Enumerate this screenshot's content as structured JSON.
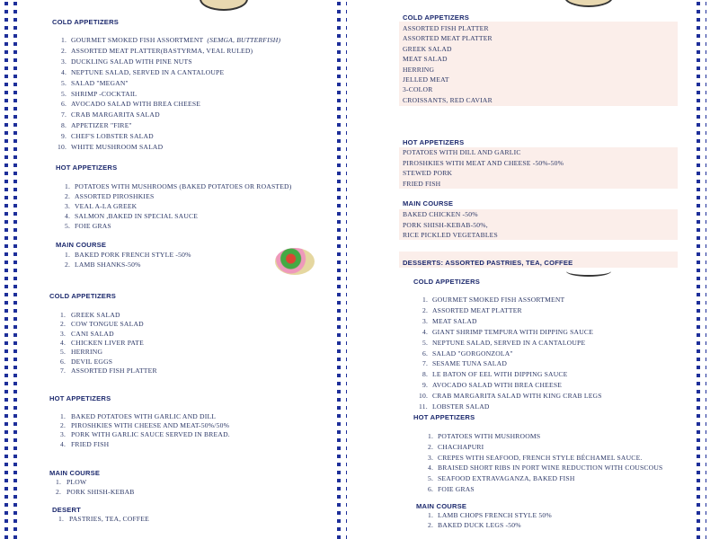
{
  "panels": [
    {
      "sections": [
        {
          "title": "COLD APPETIZERS",
          "items": [
            {
              "num": "1.",
              "text": "GOURMET SMOKED FISH ASSORTMENT",
              "note": "(SEMGA,  BUTTERFISH)"
            },
            {
              "num": "2.",
              "text": "ASSORTED MEAT PLATTER(BASTYRMA, VEAL  RULED)"
            },
            {
              "num": "3.",
              "text": "DUCKLING SALAD WITH PINE NUTS"
            },
            {
              "num": "4.",
              "text": "NEPTUNE SALAD, SERVED IN A CANTALOUPE"
            },
            {
              "num": "5.",
              "text": "SALAD \"MEGAN\""
            },
            {
              "num": "5.",
              "text": "SHRIMP -COCKTAIL"
            },
            {
              "num": "6.",
              "text": "AVOCADO SALAD WITH BREA CHEESE"
            },
            {
              "num": "7.",
              "text": "CRAB MARGARITA SALAD"
            },
            {
              "num": "8.",
              "text": "APPETIZER \"FIRE\""
            },
            {
              "num": "9.",
              "text": "CHEF'S LOBSTER SALAD"
            },
            {
              "num": "10.",
              "text": "WHITE MUSHROOM SALAD"
            }
          ]
        },
        {
          "title": "HOT APPETIZERS",
          "items": [
            {
              "num": "1.",
              "text": "POTATOES WITH MUSHROOMS (BAKED POTATOES OR ROASTED)"
            },
            {
              "num": "2.",
              "text": "ASSORTED PIROSHKIES"
            },
            {
              "num": "3.",
              "text": "VEAL A-LA GREEK"
            },
            {
              "num": "4.",
              "text": "SALMON ,BAKED IN SPECIAL SAUCE"
            },
            {
              "num": "5.",
              "text": "FOIE GRAS"
            }
          ]
        },
        {
          "title": "MAIN COURSE",
          "items": [
            {
              "num": "1.",
              "text": "BAKED PORK  FRENCH STYLE  -50%"
            },
            {
              "num": "2.",
              "text": "LAMB SHANKS-50%"
            }
          ]
        }
      ]
    },
    {
      "sections": [
        {
          "title": "COLD APPETIZERS",
          "items": [
            {
              "text": "ASSORTED FISH PLATTER"
            },
            {
              "text": "ASSORTED MEAT PLATTER"
            },
            {
              "text": "GREEK SALAD"
            },
            {
              "text": "MEAT SALAD"
            },
            {
              "text": "HERRING"
            },
            {
              "text": "JELLED MEAT"
            },
            {
              "text": "3-COLOR"
            },
            {
              "text": "CROISSANTS, RED CAVIAR"
            }
          ]
        },
        {
          "title": "HOT APPETIZERS",
          "items": [
            {
              "text": "POTATOES WITH DILL AND GARLIC"
            },
            {
              "text": "PIROSHKIES WITH MEAT AND CHEESE -50%-50%"
            },
            {
              "text": "STEWED PORK"
            },
            {
              "text": "FRIED FISH"
            }
          ]
        },
        {
          "title": "MAIN COURSE",
          "items": [
            {
              "text": "BAKED CHICKEN -50%"
            },
            {
              "text": "PORK SHISH-KEBAB-50%,"
            },
            {
              "text": "RICE PICKLED VEGETABLES"
            }
          ]
        },
        {
          "title": "DESSERTS: ASSORTED PASTRIES, TEA, COFFEE",
          "items": []
        }
      ]
    },
    {
      "sections": [
        {
          "title": "COLD APPETIZERS",
          "items": [
            {
              "num": "1.",
              "text": "GREEK SALAD"
            },
            {
              "num": "2.",
              "text": "COW TONGUE SALAD"
            },
            {
              "num": "3.",
              "text": "CANI SALAD"
            },
            {
              "num": "4.",
              "text": "CHICKEN LIVER PATE"
            },
            {
              "num": "5.",
              "text": "HERRING"
            },
            {
              "num": "6.",
              "text": "DEVIL EGGS"
            },
            {
              "num": "7.",
              "text": "ASSORTED  FISH PLATTER"
            }
          ]
        },
        {
          "title": "HOT APPETIZERS",
          "items": [
            {
              "num": "1.",
              "text": "BAKED POTATOES WITH GARLIC AND  DILL"
            },
            {
              "num": "2.",
              "text": "PIROSHKIES WITH CHEESE  AND MEAT-50%/50%"
            },
            {
              "num": "3.",
              "text": "PORK WITH GARLIC SAUCE SERVED IN BREAD."
            },
            {
              "num": "4.",
              "text": "FRIED FISH"
            }
          ]
        },
        {
          "title": "MAIN COURSE",
          "items": [
            {
              "num": "1.",
              "text": "PLOW"
            },
            {
              "num": "2.",
              "text": "PORK SHISH-KEBAB"
            }
          ]
        },
        {
          "title": "DESERT",
          "items": [
            {
              "num": "1.",
              "text": "PASTRIES, TEA, COFFEE"
            }
          ]
        }
      ]
    },
    {
      "sections": [
        {
          "title": "COLD APPETIZERS",
          "items": [
            {
              "num": "1.",
              "text": "GOURMET SMOKED FISH ASSORTMENT"
            },
            {
              "num": "2.",
              "text": "ASSORTED MEAT PLATTER"
            },
            {
              "num": "3.",
              "text": "MEAT SALAD"
            },
            {
              "num": "4.",
              "text": "GIANT SHRIMP TEMPURA WITH DIPPING SAUCE"
            },
            {
              "num": "5.",
              "text": "NEPTUNE SALAD, SERVED IN A CANTALOUPE"
            },
            {
              "num": "6.",
              "text": "SALAD \"GORGONZOLA\""
            },
            {
              "num": "7.",
              "text": "SESAME TUNA SALAD"
            },
            {
              "num": "8.",
              "text": "LE BATON OF EEL WITH DIPPING SAUCE"
            },
            {
              "num": "9.",
              "text": "AVOCADO SALAD WITH BREA CHEESE"
            },
            {
              "num": "10.",
              "text": "CRAB MARGARITA SALAD WITH KING CRAB LEGS"
            },
            {
              "num": "11.",
              "text": "LOBSTER SALAD"
            }
          ]
        },
        {
          "title": "HOT APPETIZERS",
          "items": [
            {
              "num": "1.",
              "text": "POTATOES WITH MUSHROOMS"
            },
            {
              "num": "2.",
              "text": "CHACHAPURI"
            },
            {
              "num": "3.",
              "text": "CREPES WITH SEAFOOD, FRENCH STYLE BÉCHAMEL SAUCE."
            },
            {
              "num": "4.",
              "text": "BRAISED SHORT RIBS IN PORT WINE REDUCTION WITH COUSCOUS"
            },
            {
              "num": "5.",
              "text": "SEAFOOD EXTRAVAGANZA, BAKED FISH"
            },
            {
              "num": "6.",
              "text": "FOIE GRAS"
            }
          ]
        },
        {
          "title": "MAIN COURSE",
          "items": [
            {
              "num": "1.",
              "text": "LAMB CHOPS FRENCH STYLE  50%"
            },
            {
              "num": "2.",
              "text": "BAKED DUCK LEGS -50%"
            }
          ]
        }
      ]
    }
  ]
}
